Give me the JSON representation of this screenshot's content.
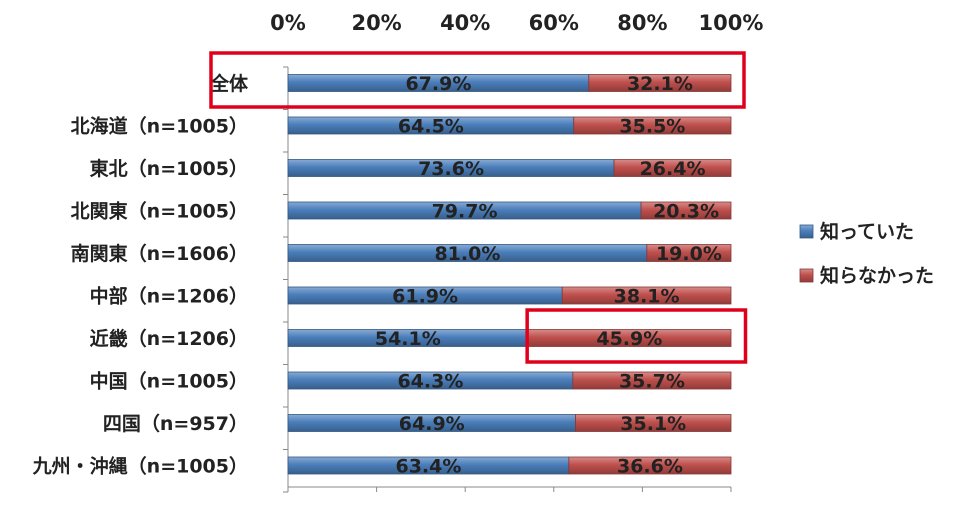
{
  "chart_data": {
    "type": "bar",
    "orientation": "horizontal",
    "stacked": true,
    "percent_stacked": true,
    "xlim": [
      0,
      100
    ],
    "x_ticks": [
      "0%",
      "20%",
      "40%",
      "60%",
      "80%",
      "100%"
    ],
    "categories": [
      "全体",
      "北海道（n=1005）",
      "東北（n=1005）",
      "北関東（n=1005）",
      "南関東（n=1606）",
      "中部（n=1206）",
      "近畿（n=1206）",
      "中国（n=1005）",
      "四国（n=957）",
      "九州・沖縄（n=1005）"
    ],
    "series": [
      {
        "name": "知っていた",
        "color": "#4a7ebb",
        "values": [
          67.9,
          64.5,
          73.6,
          79.7,
          81.0,
          61.9,
          54.1,
          64.3,
          64.9,
          63.4
        ],
        "labels": [
          "67.9%",
          "64.5%",
          "73.6%",
          "79.7%",
          "81.0%",
          "61.9%",
          "54.1%",
          "64.3%",
          "64.9%",
          "63.4%"
        ]
      },
      {
        "name": "知らなかった",
        "color": "#c0504d",
        "values": [
          32.1,
          35.5,
          26.4,
          20.3,
          19.0,
          38.1,
          45.9,
          35.7,
          35.1,
          36.6
        ],
        "labels": [
          "32.1%",
          "35.5%",
          "26.4%",
          "20.3%",
          "19.0%",
          "38.1%",
          "45.9%",
          "35.7%",
          "35.1%",
          "36.6%"
        ]
      }
    ],
    "legend_position": "right",
    "highlights": [
      {
        "target": "category",
        "index": 0,
        "color": "#e0001b"
      },
      {
        "target": "segment",
        "category_index": 6,
        "series_index": 1,
        "color": "#e0001b"
      }
    ]
  }
}
